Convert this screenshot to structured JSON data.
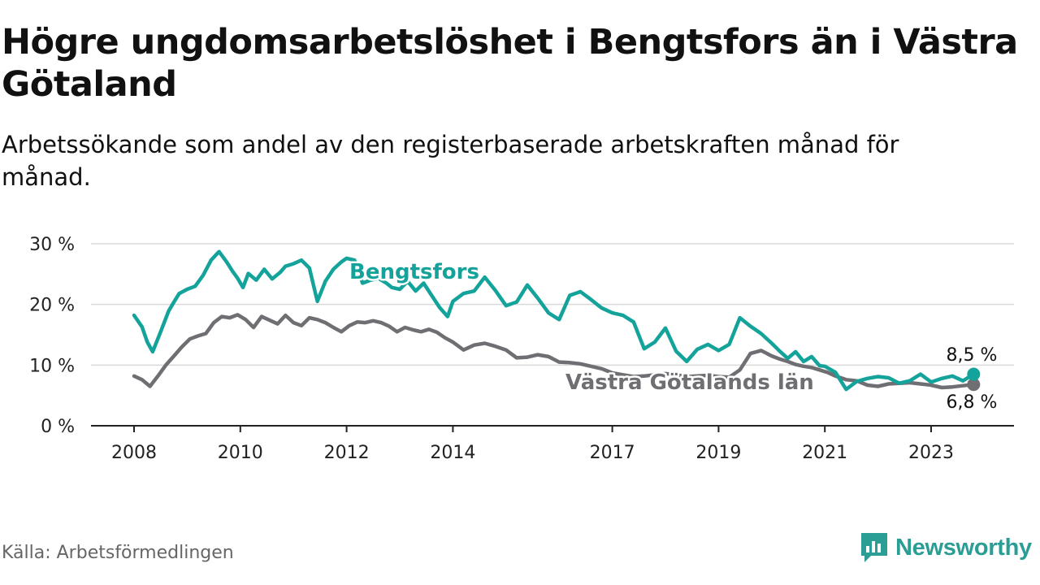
{
  "header": {
    "title": "Högre ungdomsarbetslöshet i Bengtsfors än i Västra Götaland",
    "subtitle": "Arbetssökande som andel av den registerbaserade arbetskraften månad för månad."
  },
  "footer": {
    "source": "Källa: Arbetsförmedlingen",
    "brand": "Newsworthy"
  },
  "colors": {
    "bengtsfors": "#14a39a",
    "vg": "#6e6e73",
    "grid": "#d9d9d9",
    "axis": "#222222",
    "brand": "#2a9d94"
  },
  "chart_data": {
    "type": "line",
    "ylim": [
      0,
      30
    ],
    "xlim": [
      2008,
      2024.6
    ],
    "y_ticks": [
      0,
      10,
      20,
      30
    ],
    "y_tick_labels": [
      "0 %",
      "10 %",
      "20 %",
      "30 %"
    ],
    "x_ticks": [
      2008,
      2010,
      2012,
      2014,
      2017,
      2019,
      2021,
      2023
    ],
    "x_tick_labels": [
      "2008",
      "2010",
      "2012",
      "2014",
      "2017",
      "2019",
      "2021",
      "2023"
    ],
    "grid": true,
    "series": [
      {
        "name": "Bengtsfors",
        "label": "Bengtsfors",
        "end_label": "8,5 %",
        "x": [
          2008.0,
          2008.15,
          2008.25,
          2008.35,
          2008.5,
          2008.65,
          2008.75,
          2008.85,
          2009.0,
          2009.15,
          2009.3,
          2009.45,
          2009.6,
          2009.75,
          2009.85,
          2009.95,
          2010.05,
          2010.15,
          2010.3,
          2010.45,
          2010.6,
          2010.75,
          2010.85,
          2011.0,
          2011.15,
          2011.3,
          2011.45,
          2011.6,
          2011.75,
          2011.9,
          2012.0,
          2012.15,
          2012.3,
          2012.45,
          2012.6,
          2012.75,
          2012.85,
          2013.0,
          2013.15,
          2013.3,
          2013.45,
          2013.6,
          2013.75,
          2013.9,
          2014.0,
          2014.2,
          2014.4,
          2014.6,
          2014.8,
          2015.0,
          2015.2,
          2015.4,
          2015.6,
          2015.8,
          2016.0,
          2016.2,
          2016.4,
          2016.6,
          2016.8,
          2017.0,
          2017.2,
          2017.4,
          2017.6,
          2017.8,
          2018.0,
          2018.2,
          2018.4,
          2018.6,
          2018.8,
          2019.0,
          2019.2,
          2019.4,
          2019.6,
          2019.8,
          2020.0,
          2020.15,
          2020.3,
          2020.45,
          2020.6,
          2020.75,
          2020.9,
          2021.0,
          2021.2,
          2021.4,
          2021.6,
          2021.8,
          2022.0,
          2022.2,
          2022.4,
          2022.6,
          2022.8,
          2023.0,
          2023.2,
          2023.4,
          2023.6,
          2023.8
        ],
        "values": [
          18.2,
          16.3,
          13.8,
          12.2,
          15.5,
          18.9,
          20.4,
          21.8,
          22.5,
          23.0,
          24.8,
          27.3,
          28.7,
          26.9,
          25.5,
          24.3,
          22.8,
          25.1,
          24.0,
          25.8,
          24.2,
          25.3,
          26.3,
          26.7,
          27.3,
          26.0,
          20.5,
          23.8,
          25.8,
          27.0,
          27.6,
          27.3,
          23.5,
          24.0,
          24.3,
          23.5,
          22.8,
          22.5,
          23.8,
          22.2,
          23.5,
          21.5,
          19.5,
          18.0,
          20.5,
          21.8,
          22.2,
          24.5,
          22.3,
          19.8,
          20.4,
          23.2,
          21.0,
          18.6,
          17.5,
          21.5,
          22.1,
          20.8,
          19.4,
          18.6,
          18.2,
          17.1,
          12.7,
          13.8,
          16.1,
          12.3,
          10.6,
          12.6,
          13.4,
          12.4,
          13.4,
          17.8,
          16.4,
          15.2,
          13.6,
          12.3,
          11.1,
          12.2,
          10.6,
          11.4,
          9.9,
          9.8,
          8.8,
          6.0,
          7.3,
          7.8,
          8.1,
          7.9,
          7.0,
          7.4,
          8.5,
          7.2,
          7.8,
          8.2,
          7.4,
          8.5
        ]
      },
      {
        "name": "Västra Götalands län",
        "label": "Västra Götalands län",
        "end_label": "6,8 %",
        "x": [
          2008.0,
          2008.15,
          2008.3,
          2008.45,
          2008.6,
          2008.75,
          2008.9,
          2009.05,
          2009.2,
          2009.35,
          2009.5,
          2009.65,
          2009.8,
          2009.95,
          2010.1,
          2010.25,
          2010.4,
          2010.55,
          2010.7,
          2010.85,
          2011.0,
          2011.15,
          2011.3,
          2011.45,
          2011.6,
          2011.75,
          2011.9,
          2012.05,
          2012.2,
          2012.35,
          2012.5,
          2012.65,
          2012.8,
          2012.95,
          2013.1,
          2013.25,
          2013.4,
          2013.55,
          2013.7,
          2013.85,
          2014.0,
          2014.2,
          2014.4,
          2014.6,
          2014.8,
          2015.0,
          2015.2,
          2015.4,
          2015.6,
          2015.8,
          2016.0,
          2016.2,
          2016.4,
          2016.6,
          2016.8,
          2017.0,
          2017.2,
          2017.4,
          2017.6,
          2017.8,
          2018.0,
          2018.2,
          2018.4,
          2018.6,
          2018.8,
          2019.0,
          2019.2,
          2019.4,
          2019.6,
          2019.8,
          2020.0,
          2020.15,
          2020.3,
          2020.45,
          2020.6,
          2020.75,
          2020.9,
          2021.05,
          2021.2,
          2021.4,
          2021.6,
          2021.8,
          2022.0,
          2022.2,
          2022.4,
          2022.6,
          2022.8,
          2023.0,
          2023.2,
          2023.4,
          2023.6,
          2023.8
        ],
        "values": [
          8.2,
          7.6,
          6.5,
          8.2,
          10.0,
          11.5,
          13.0,
          14.3,
          14.8,
          15.2,
          17.0,
          18.0,
          17.8,
          18.3,
          17.5,
          16.2,
          18.0,
          17.4,
          16.8,
          18.2,
          17.0,
          16.5,
          17.8,
          17.5,
          17.0,
          16.2,
          15.5,
          16.5,
          17.1,
          17.0,
          17.3,
          17.0,
          16.4,
          15.5,
          16.2,
          15.8,
          15.5,
          15.9,
          15.4,
          14.5,
          13.8,
          12.5,
          13.3,
          13.6,
          13.1,
          12.5,
          11.2,
          11.3,
          11.7,
          11.4,
          10.5,
          10.4,
          10.2,
          9.8,
          9.4,
          8.7,
          8.4,
          8.1,
          8.2,
          8.4,
          8.6,
          8.4,
          8.1,
          8.2,
          8.3,
          8.1,
          8.0,
          9.2,
          11.9,
          12.4,
          11.5,
          11.0,
          10.6,
          10.1,
          9.8,
          9.6,
          9.2,
          8.8,
          8.2,
          7.6,
          7.4,
          6.7,
          6.5,
          6.9,
          7.0,
          7.1,
          6.9,
          6.7,
          6.3,
          6.4,
          6.6,
          6.8
        ]
      }
    ]
  }
}
